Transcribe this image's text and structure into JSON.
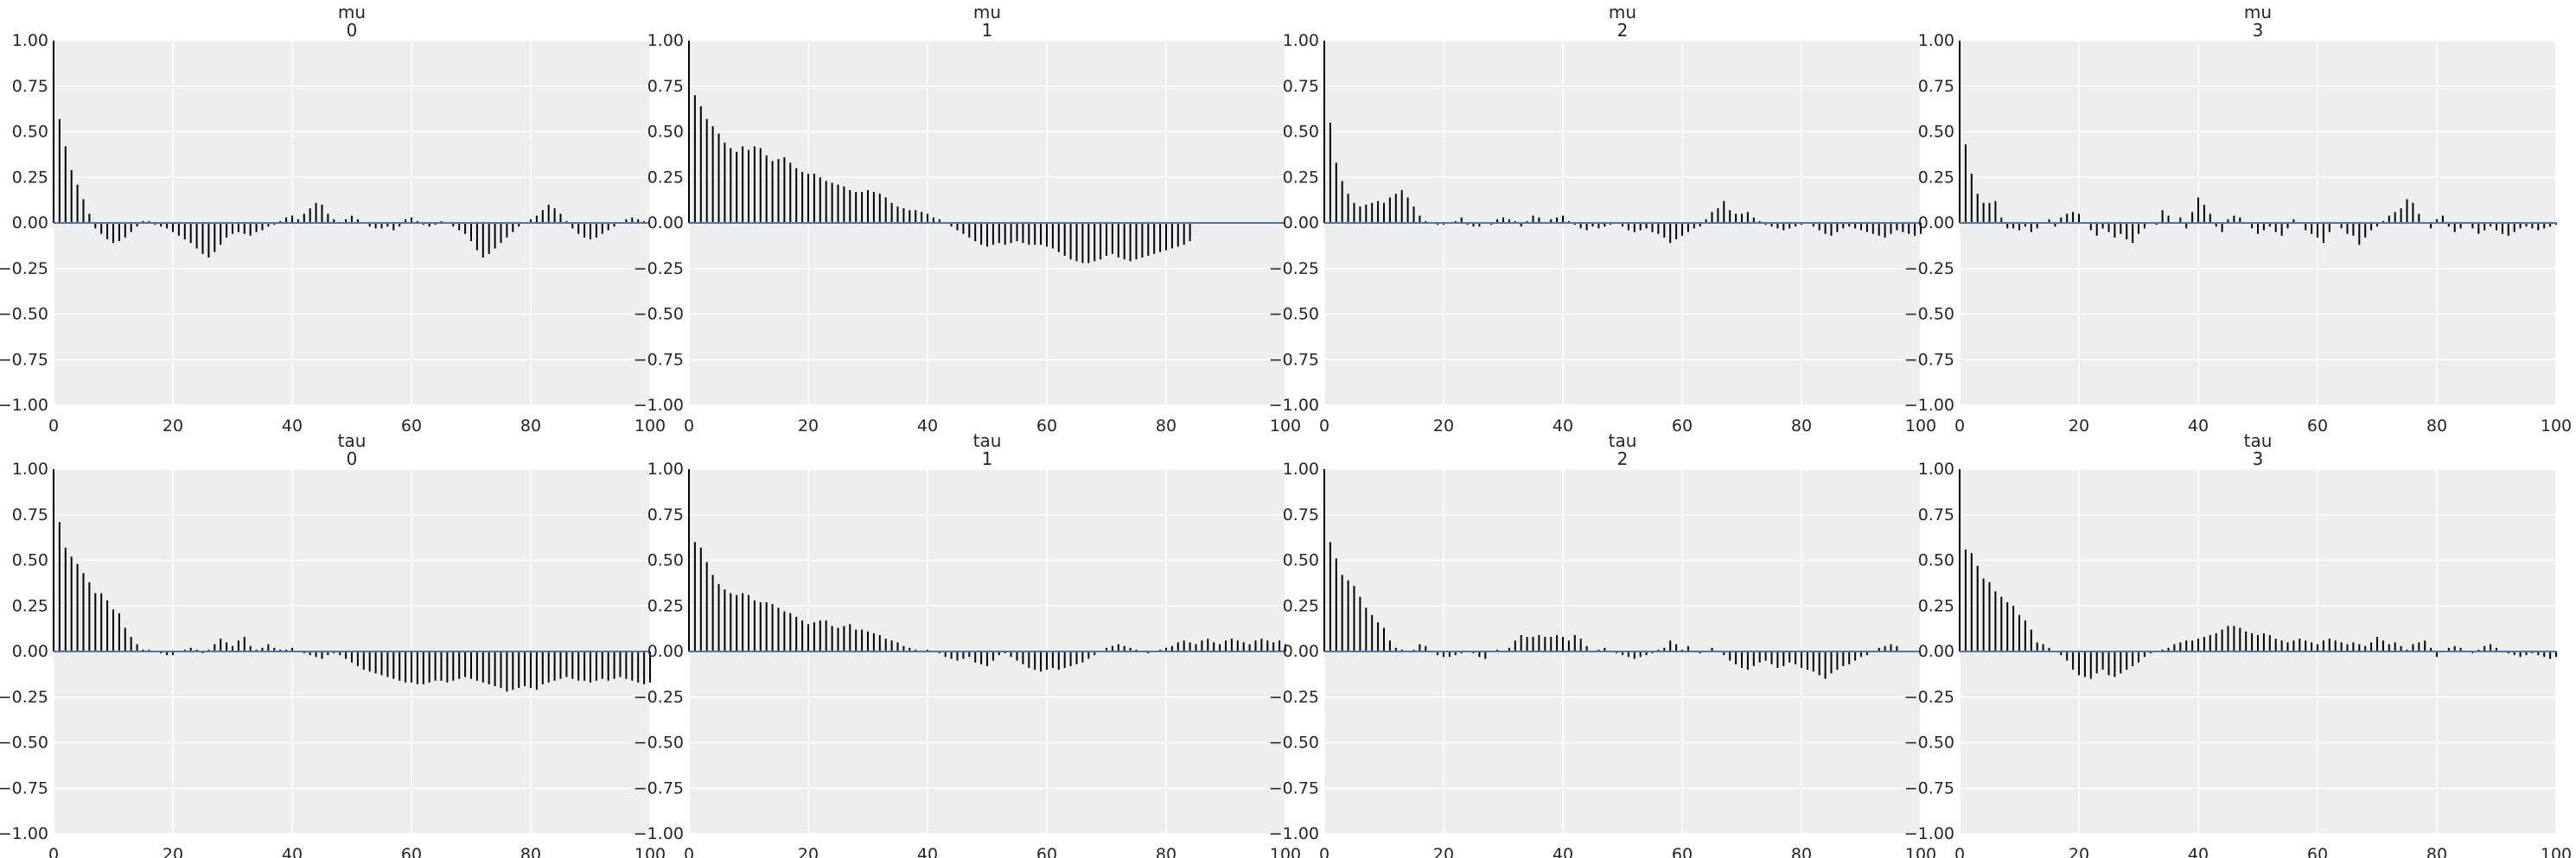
{
  "figure": {
    "colors": {
      "panel_bg": "#eeeeee",
      "grid": "#ffffff",
      "bar": "#000000",
      "zero_line": "#4a78b5"
    },
    "grid": true
  },
  "chart_data": [
    {
      "type": "bar",
      "title": [
        "mu",
        "0"
      ],
      "xlim": [
        0,
        100
      ],
      "ylim": [
        -1,
        1
      ],
      "xticks": [
        "0",
        "20",
        "40",
        "60",
        "80",
        "100"
      ],
      "yticks": [
        "1.00",
        "0.75",
        "0.50",
        "0.25",
        "0.00",
        "−0.25",
        "−0.50",
        "−0.75",
        "−1.00"
      ],
      "values": [
        1.0,
        0.57,
        0.42,
        0.29,
        0.21,
        0.13,
        0.05,
        -0.03,
        -0.06,
        -0.09,
        -0.11,
        -0.1,
        -0.08,
        -0.05,
        -0.02,
        0.01,
        0.01,
        -0.01,
        -0.02,
        -0.03,
        -0.05,
        -0.07,
        -0.09,
        -0.11,
        -0.14,
        -0.17,
        -0.19,
        -0.16,
        -0.12,
        -0.08,
        -0.06,
        -0.05,
        -0.06,
        -0.07,
        -0.05,
        -0.04,
        -0.02,
        -0.01,
        0.01,
        0.03,
        0.04,
        0.02,
        0.05,
        0.08,
        0.11,
        0.1,
        0.05,
        0.02,
        0.0,
        0.02,
        0.04,
        0.02,
        0.0,
        -0.02,
        -0.03,
        -0.03,
        -0.02,
        -0.04,
        -0.02,
        0.02,
        0.03,
        0.01,
        -0.01,
        -0.02,
        -0.01,
        0.01,
        0.0,
        -0.02,
        -0.04,
        -0.06,
        -0.1,
        -0.15,
        -0.19,
        -0.17,
        -0.14,
        -0.11,
        -0.08,
        -0.05,
        -0.02,
        0.0,
        0.02,
        0.04,
        0.07,
        0.1,
        0.08,
        0.05,
        0.01,
        -0.03,
        -0.06,
        -0.08,
        -0.09,
        -0.08,
        -0.06,
        -0.04,
        -0.02,
        0.0,
        0.02,
        0.03,
        0.02,
        0.01,
        0.0
      ]
    },
    {
      "type": "bar",
      "title": [
        "mu",
        "1"
      ],
      "xlim": [
        0,
        100
      ],
      "ylim": [
        -1,
        1
      ],
      "xticks": [
        "0",
        "20",
        "40",
        "60",
        "80",
        "100"
      ],
      "yticks": [
        "1.00",
        "0.75",
        "0.50",
        "0.25",
        "0.00",
        "−0.25",
        "−0.50",
        "−0.75",
        "−1.00"
      ],
      "values": [
        1.0,
        0.7,
        0.64,
        0.57,
        0.53,
        0.49,
        0.44,
        0.41,
        0.39,
        0.42,
        0.4,
        0.42,
        0.41,
        0.37,
        0.34,
        0.35,
        0.36,
        0.33,
        0.3,
        0.28,
        0.27,
        0.27,
        0.25,
        0.23,
        0.22,
        0.21,
        0.2,
        0.18,
        0.17,
        0.17,
        0.18,
        0.17,
        0.16,
        0.14,
        0.11,
        0.09,
        0.08,
        0.07,
        0.07,
        0.06,
        0.05,
        0.03,
        0.02,
        0.0,
        -0.02,
        -0.04,
        -0.06,
        -0.08,
        -0.1,
        -0.12,
        -0.13,
        -0.12,
        -0.11,
        -0.12,
        -0.11,
        -0.1,
        -0.11,
        -0.12,
        -0.12,
        -0.12,
        -0.13,
        -0.14,
        -0.16,
        -0.18,
        -0.2,
        -0.21,
        -0.22,
        -0.22,
        -0.21,
        -0.2,
        -0.18,
        -0.17,
        -0.19,
        -0.2,
        -0.21,
        -0.2,
        -0.19,
        -0.18,
        -0.17,
        -0.16,
        -0.15,
        -0.14,
        -0.13,
        -0.12,
        -0.1
      ]
    },
    {
      "type": "bar",
      "title": [
        "mu",
        "2"
      ],
      "xlim": [
        0,
        100
      ],
      "ylim": [
        -1,
        1
      ],
      "xticks": [
        "0",
        "20",
        "40",
        "60",
        "80",
        "100"
      ],
      "yticks": [
        "1.00",
        "0.75",
        "0.50",
        "0.25",
        "0.00",
        "−0.25",
        "−0.50",
        "−0.75",
        "−1.00"
      ],
      "values": [
        1.0,
        0.55,
        0.33,
        0.23,
        0.16,
        0.11,
        0.09,
        0.1,
        0.11,
        0.12,
        0.11,
        0.14,
        0.16,
        0.18,
        0.14,
        0.09,
        0.04,
        0.01,
        0.0,
        -0.01,
        -0.01,
        0.0,
        0.01,
        0.03,
        -0.01,
        -0.02,
        -0.02,
        0.0,
        -0.01,
        0.02,
        0.03,
        0.02,
        0.01,
        -0.02,
        0.01,
        0.04,
        0.03,
        0.0,
        0.02,
        0.03,
        0.04,
        0.01,
        -0.01,
        -0.03,
        -0.04,
        -0.02,
        -0.03,
        -0.02,
        -0.01,
        0.0,
        -0.02,
        -0.04,
        -0.05,
        -0.04,
        -0.03,
        -0.05,
        -0.06,
        -0.08,
        -0.11,
        -0.09,
        -0.07,
        -0.05,
        -0.03,
        -0.02,
        0.02,
        0.06,
        0.08,
        0.12,
        0.07,
        0.05,
        0.05,
        0.06,
        0.03,
        0.01,
        -0.01,
        -0.02,
        -0.03,
        -0.04,
        -0.03,
        -0.02,
        -0.01,
        0.0,
        -0.02,
        -0.04,
        -0.06,
        -0.07,
        -0.05,
        -0.03,
        -0.02,
        -0.03,
        -0.04,
        -0.05,
        -0.06,
        -0.07,
        -0.08,
        -0.06,
        -0.04,
        -0.05,
        -0.06,
        -0.07,
        -0.06
      ]
    },
    {
      "type": "bar",
      "title": [
        "mu",
        "3"
      ],
      "xlim": [
        0,
        100
      ],
      "ylim": [
        -1,
        1
      ],
      "xticks": [
        "0",
        "20",
        "40",
        "60",
        "80",
        "100"
      ],
      "yticks": [
        "1.00",
        "0.75",
        "0.50",
        "0.25",
        "0.00",
        "−0.25",
        "−0.50",
        "−0.75",
        "−1.00"
      ],
      "values": [
        1.0,
        0.43,
        0.27,
        0.16,
        0.11,
        0.11,
        0.12,
        0.03,
        -0.03,
        -0.03,
        -0.04,
        -0.02,
        -0.05,
        -0.03,
        0.0,
        0.02,
        -0.02,
        0.03,
        0.05,
        0.06,
        0.05,
        0.0,
        -0.04,
        -0.07,
        -0.03,
        -0.05,
        -0.08,
        -0.06,
        -0.09,
        -0.11,
        -0.06,
        -0.03,
        0.0,
        -0.01,
        0.07,
        0.04,
        0.0,
        0.03,
        -0.03,
        0.06,
        0.14,
        0.1,
        0.05,
        -0.02,
        -0.05,
        0.02,
        0.04,
        0.03,
        0.0,
        -0.03,
        -0.06,
        -0.04,
        -0.02,
        -0.05,
        -0.07,
        -0.03,
        0.02,
        0.0,
        -0.04,
        -0.06,
        -0.08,
        -0.11,
        -0.05,
        0.0,
        -0.03,
        -0.06,
        -0.07,
        -0.12,
        -0.08,
        -0.04,
        -0.02,
        0.01,
        0.04,
        0.06,
        0.08,
        0.13,
        0.11,
        0.05,
        0.0,
        -0.03,
        0.02,
        0.04,
        -0.02,
        -0.05,
        -0.03,
        0.0,
        -0.03,
        -0.06,
        -0.04,
        -0.02,
        -0.04,
        -0.06,
        -0.07,
        -0.05,
        -0.03,
        -0.02,
        -0.03,
        -0.04,
        -0.03,
        -0.02,
        -0.01
      ]
    },
    {
      "type": "bar",
      "title": [
        "tau",
        "0"
      ],
      "xlim": [
        0,
        100
      ],
      "ylim": [
        -1,
        1
      ],
      "xticks": [
        "0",
        "20",
        "40",
        "60",
        "80",
        "100"
      ],
      "yticks": [
        "1.00",
        "0.75",
        "0.50",
        "0.25",
        "0.00",
        "−0.25",
        "−0.50",
        "−0.75",
        "−1.00"
      ],
      "values": [
        1.0,
        0.71,
        0.57,
        0.52,
        0.48,
        0.43,
        0.38,
        0.32,
        0.32,
        0.28,
        0.23,
        0.21,
        0.13,
        0.08,
        0.04,
        0.01,
        0.01,
        0.0,
        -0.01,
        -0.02,
        -0.02,
        0.0,
        0.01,
        0.02,
        0.01,
        -0.01,
        0.01,
        0.04,
        0.07,
        0.05,
        0.03,
        0.06,
        0.08,
        0.03,
        0.01,
        0.02,
        0.04,
        0.02,
        0.01,
        0.01,
        0.02,
        0.0,
        -0.01,
        -0.02,
        -0.03,
        -0.04,
        -0.02,
        -0.01,
        -0.02,
        -0.04,
        -0.06,
        -0.08,
        -0.1,
        -0.11,
        -0.12,
        -0.13,
        -0.14,
        -0.15,
        -0.16,
        -0.17,
        -0.17,
        -0.18,
        -0.18,
        -0.17,
        -0.16,
        -0.16,
        -0.17,
        -0.16,
        -0.15,
        -0.14,
        -0.15,
        -0.16,
        -0.17,
        -0.18,
        -0.19,
        -0.2,
        -0.22,
        -0.21,
        -0.2,
        -0.19,
        -0.2,
        -0.21,
        -0.18,
        -0.17,
        -0.16,
        -0.15,
        -0.14,
        -0.15,
        -0.16,
        -0.16,
        -0.17,
        -0.16,
        -0.15,
        -0.16,
        -0.15,
        -0.14,
        -0.15,
        -0.16,
        -0.17,
        -0.18,
        -0.17
      ]
    },
    {
      "type": "bar",
      "title": [
        "tau",
        "1"
      ],
      "xlim": [
        0,
        100
      ],
      "ylim": [
        -1,
        1
      ],
      "xticks": [
        "0",
        "20",
        "40",
        "60",
        "80",
        "100"
      ],
      "yticks": [
        "1.00",
        "0.75",
        "0.50",
        "0.25",
        "0.00",
        "−0.25",
        "−0.50",
        "−0.75",
        "−1.00"
      ],
      "values": [
        1.0,
        0.6,
        0.57,
        0.49,
        0.42,
        0.37,
        0.34,
        0.32,
        0.31,
        0.32,
        0.31,
        0.28,
        0.27,
        0.27,
        0.26,
        0.24,
        0.22,
        0.21,
        0.19,
        0.17,
        0.15,
        0.16,
        0.17,
        0.17,
        0.14,
        0.13,
        0.14,
        0.15,
        0.12,
        0.12,
        0.11,
        0.1,
        0.09,
        0.07,
        0.06,
        0.05,
        0.03,
        0.02,
        0.01,
        0.0,
        0.01,
        0.0,
        -0.01,
        -0.03,
        -0.04,
        -0.05,
        -0.04,
        -0.03,
        -0.06,
        -0.07,
        -0.08,
        -0.05,
        -0.02,
        -0.01,
        -0.03,
        -0.05,
        -0.07,
        -0.09,
        -0.1,
        -0.11,
        -0.1,
        -0.09,
        -0.1,
        -0.09,
        -0.08,
        -0.07,
        -0.06,
        -0.04,
        -0.02,
        0.0,
        0.02,
        0.03,
        0.04,
        0.03,
        0.02,
        0.01,
        0.0,
        -0.01,
        0.0,
        0.01,
        0.02,
        0.03,
        0.05,
        0.06,
        0.05,
        0.04,
        0.06,
        0.07,
        0.05,
        0.04,
        0.06,
        0.07,
        0.06,
        0.05,
        0.04,
        0.06,
        0.07,
        0.06,
        0.05,
        0.06,
        0.04
      ]
    },
    {
      "type": "bar",
      "title": [
        "tau",
        "2"
      ],
      "xlim": [
        0,
        100
      ],
      "ylim": [
        -1,
        1
      ],
      "xticks": [
        "0",
        "20",
        "40",
        "60",
        "80",
        "100"
      ],
      "yticks": [
        "1.00",
        "0.75",
        "0.50",
        "0.25",
        "0.00",
        "−0.25",
        "−0.50",
        "−0.75",
        "−1.00"
      ],
      "values": [
        1.0,
        0.6,
        0.51,
        0.42,
        0.39,
        0.36,
        0.3,
        0.24,
        0.2,
        0.16,
        0.13,
        0.06,
        0.02,
        0.01,
        0.0,
        0.01,
        0.04,
        0.03,
        0.0,
        -0.02,
        -0.03,
        -0.03,
        -0.02,
        -0.01,
        0.0,
        -0.01,
        -0.03,
        -0.04,
        0.0,
        0.01,
        0.0,
        0.02,
        0.06,
        0.09,
        0.08,
        0.08,
        0.09,
        0.08,
        0.08,
        0.09,
        0.08,
        0.06,
        0.09,
        0.07,
        0.03,
        0.0,
        0.01,
        0.02,
        0.0,
        -0.01,
        -0.02,
        -0.03,
        -0.04,
        -0.03,
        -0.02,
        -0.01,
        0.01,
        0.02,
        0.06,
        0.04,
        0.01,
        0.03,
        0.0,
        -0.01,
        0.0,
        0.02,
        0.0,
        -0.02,
        -0.05,
        -0.07,
        -0.09,
        -0.1,
        -0.08,
        -0.06,
        -0.05,
        -0.07,
        -0.09,
        -0.08,
        -0.06,
        -0.07,
        -0.09,
        -0.1,
        -0.11,
        -0.13,
        -0.15,
        -0.12,
        -0.1,
        -0.08,
        -0.07,
        -0.05,
        -0.03,
        -0.02,
        0.0,
        0.02,
        0.03,
        0.04,
        0.03
      ]
    },
    {
      "type": "bar",
      "title": [
        "tau",
        "3"
      ],
      "xlim": [
        0,
        100
      ],
      "ylim": [
        -1,
        1
      ],
      "xticks": [
        "0",
        "20",
        "40",
        "60",
        "80",
        "100"
      ],
      "yticks": [
        "1.00",
        "0.75",
        "0.50",
        "0.25",
        "0.00",
        "−0.25",
        "−0.50",
        "−0.75",
        "−1.00"
      ],
      "values": [
        1.0,
        0.56,
        0.54,
        0.47,
        0.4,
        0.38,
        0.33,
        0.3,
        0.27,
        0.25,
        0.2,
        0.17,
        0.12,
        0.05,
        0.04,
        0.02,
        0.0,
        -0.02,
        -0.05,
        -0.1,
        -0.13,
        -0.14,
        -0.15,
        -0.12,
        -0.1,
        -0.13,
        -0.14,
        -0.12,
        -0.1,
        -0.08,
        -0.06,
        -0.03,
        -0.01,
        0.0,
        0.01,
        0.02,
        0.04,
        0.05,
        0.06,
        0.06,
        0.07,
        0.08,
        0.09,
        0.1,
        0.12,
        0.14,
        0.14,
        0.13,
        0.11,
        0.1,
        0.09,
        0.1,
        0.09,
        0.07,
        0.06,
        0.05,
        0.06,
        0.07,
        0.06,
        0.05,
        0.04,
        0.06,
        0.07,
        0.06,
        0.05,
        0.04,
        0.05,
        0.04,
        0.03,
        0.05,
        0.08,
        0.06,
        0.04,
        0.05,
        0.03,
        0.01,
        0.04,
        0.05,
        0.06,
        0.02,
        -0.03,
        0.0,
        0.02,
        0.03,
        0.02,
        0.0,
        -0.01,
        0.01,
        0.03,
        0.04,
        0.02,
        0.0,
        -0.01,
        -0.02,
        -0.03,
        -0.02,
        -0.01,
        -0.02,
        -0.03,
        -0.04,
        -0.03
      ]
    }
  ]
}
